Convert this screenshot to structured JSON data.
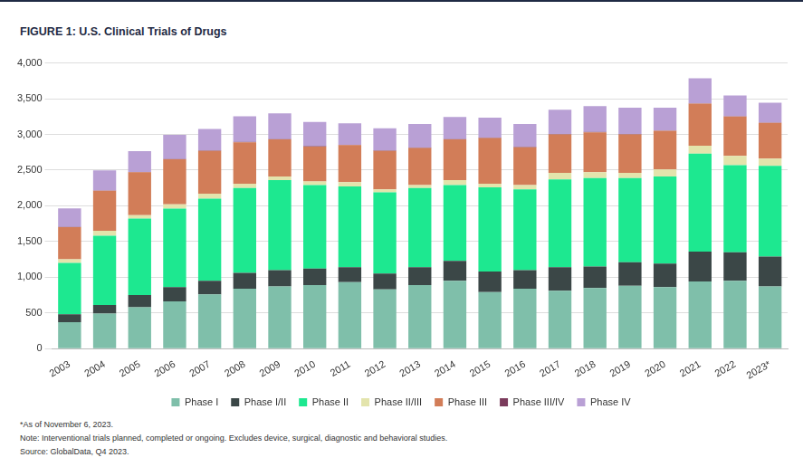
{
  "chart_data": {
    "type": "bar",
    "title": "FIGURE 1: U.S. Clinical Trials of Drugs",
    "footnotes": [
      "*As of November 6, 2023.",
      "Note: Interventional trials planned, completed or ongoing. Excludes device, surgical, diagnostic and behavioral studies.",
      "Source: GlobalData, Q4 2023."
    ],
    "categories": [
      "2003",
      "2004",
      "2005",
      "2006",
      "2007",
      "2008",
      "2009",
      "2010",
      "2011",
      "2012",
      "2013",
      "2014",
      "2015",
      "2016",
      "2017",
      "2018",
      "2019",
      "2020",
      "2021",
      "2022",
      "2023*"
    ],
    "series": [
      {
        "name": "Phase I",
        "color": "#7fbfaa",
        "values": [
          370,
          490,
          580,
          660,
          760,
          840,
          870,
          890,
          930,
          830,
          890,
          950,
          790,
          840,
          810,
          850,
          880,
          860,
          940,
          950,
          870
        ]
      },
      {
        "name": "Phase I/II",
        "color": "#3b4747",
        "values": [
          110,
          120,
          170,
          200,
          190,
          220,
          230,
          230,
          210,
          220,
          250,
          280,
          290,
          260,
          330,
          300,
          330,
          330,
          420,
          400,
          420
        ]
      },
      {
        "name": "Phase II",
        "color": "#1de890",
        "values": [
          720,
          970,
          1070,
          1100,
          1150,
          1190,
          1260,
          1170,
          1130,
          1140,
          1110,
          1060,
          1180,
          1130,
          1230,
          1240,
          1180,
          1220,
          1370,
          1220,
          1270
        ]
      },
      {
        "name": "Phase II/III",
        "color": "#e3e4ac",
        "values": [
          50,
          70,
          50,
          60,
          70,
          60,
          50,
          50,
          60,
          40,
          40,
          70,
          50,
          60,
          90,
          80,
          70,
          100,
          110,
          130,
          100
        ]
      },
      {
        "name": "Phase III",
        "color": "#d27d58",
        "values": [
          450,
          560,
          600,
          630,
          600,
          580,
          520,
          490,
          520,
          540,
          520,
          570,
          640,
          530,
          540,
          560,
          540,
          540,
          590,
          550,
          500
        ]
      },
      {
        "name": "Phase III/IV",
        "color": "#7b3b5c",
        "values": [
          5,
          5,
          5,
          5,
          5,
          5,
          5,
          5,
          5,
          5,
          5,
          5,
          5,
          5,
          5,
          5,
          5,
          5,
          5,
          5,
          5
        ]
      },
      {
        "name": "Phase IV",
        "color": "#b9a0d5",
        "values": [
          260,
          280,
          290,
          340,
          300,
          360,
          360,
          340,
          300,
          310,
          330,
          310,
          280,
          320,
          340,
          360,
          370,
          320,
          350,
          290,
          280
        ]
      }
    ],
    "stacked": true,
    "ylim": [
      0,
      4000
    ],
    "yticks": [
      0,
      500,
      {
        "value": 1000,
        "label": "1,000"
      },
      {
        "value": 1500,
        "label": "1,500"
      },
      {
        "value": 2000,
        "label": "2,000"
      },
      {
        "value": 2500,
        "label": "2,500"
      },
      {
        "value": 3000,
        "label": "3,000"
      },
      {
        "value": 3500,
        "label": "3,500"
      },
      {
        "value": 4000,
        "label": "4,000"
      }
    ],
    "grid": true,
    "legend": "bottom"
  }
}
